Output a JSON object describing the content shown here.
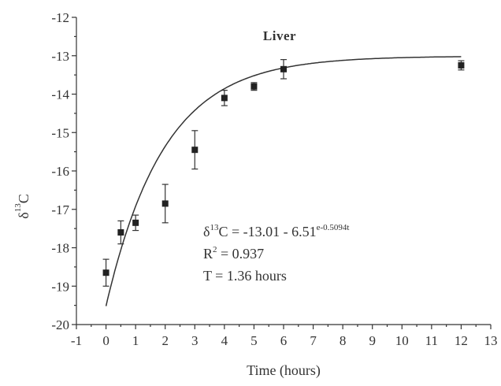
{
  "chart_data": {
    "type": "scatter",
    "title": "Liver",
    "xlabel": "Time (hours)",
    "ylabel_main": "δ",
    "ylabel_sup": "13",
    "ylabel_tail": "C",
    "xlim": [
      -1,
      13
    ],
    "ylim": [
      -20,
      -12
    ],
    "xticks": [
      -1,
      0,
      1,
      2,
      3,
      4,
      5,
      6,
      7,
      8,
      9,
      10,
      11,
      12,
      13
    ],
    "yticks": [
      -20,
      -19,
      -18,
      -17,
      -16,
      -15,
      -14,
      -13,
      -12
    ],
    "grid": false,
    "points": [
      {
        "x": 0,
        "y": -18.65,
        "err": 0.35
      },
      {
        "x": 0.5,
        "y": -17.6,
        "err": 0.3
      },
      {
        "x": 1,
        "y": -17.35,
        "err": 0.2
      },
      {
        "x": 2,
        "y": -16.85,
        "err": 0.5
      },
      {
        "x": 3,
        "y": -15.45,
        "err": 0.5
      },
      {
        "x": 4,
        "y": -14.1,
        "err": 0.2
      },
      {
        "x": 5,
        "y": -13.8,
        "err": 0.1
      },
      {
        "x": 6,
        "y": -13.35,
        "err": 0.25
      },
      {
        "x": 12,
        "y": -13.25,
        "err": 0.12
      }
    ],
    "fit": {
      "a": -13.01,
      "b": 6.51,
      "k": 0.5094
    },
    "annotations": {
      "eq_main": "δ",
      "eq_sup1": "13",
      "eq_mid": "C = -13.01 - 6.51",
      "eq_sup2": "e-0.5094t",
      "r2_main": "R",
      "r2_sup": "2",
      "r2_tail": " = 0.937",
      "t_line": "T = 1.36 hours"
    }
  }
}
